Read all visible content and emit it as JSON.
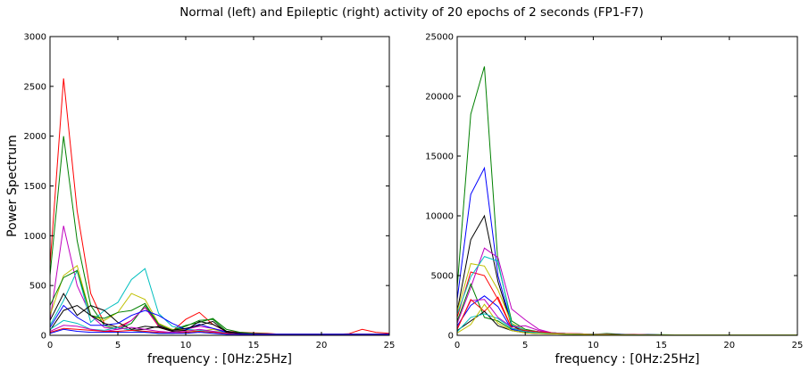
{
  "figure": {
    "title": "Normal (left) and Epileptic (right) activity of 20 epochs of 2 seconds (FP1-F7)"
  },
  "chart_data": [
    {
      "type": "line",
      "title": "",
      "xlabel": "frequency : [0Hz:25Hz]",
      "ylabel": "Power Spectrum",
      "xlim": [
        0,
        25
      ],
      "ylim": [
        0,
        3000
      ],
      "xticks": [
        0,
        5,
        10,
        15,
        20,
        25
      ],
      "yticks": [
        0,
        500,
        1000,
        1500,
        2000,
        2500,
        3000
      ],
      "xtick_labels": [
        "0",
        "5",
        "10",
        "15",
        "20",
        "25"
      ],
      "ytick_labels": [
        "0",
        "500",
        "1000",
        "1500",
        "2000",
        "2500",
        "3000"
      ],
      "grid": false,
      "x": [
        0,
        1,
        2,
        3,
        4,
        5,
        6,
        7,
        8,
        9,
        10,
        11,
        12,
        13,
        14,
        15,
        16,
        17,
        18,
        19,
        20,
        21,
        22,
        23,
        24,
        25
      ],
      "series": [
        {
          "color": "#ff0000",
          "values": [
            700,
            2580,
            1250,
            420,
            120,
            80,
            150,
            280,
            90,
            40,
            160,
            230,
            110,
            40,
            30,
            25,
            20,
            10,
            10,
            10,
            10,
            10,
            15,
            60,
            30,
            20
          ]
        },
        {
          "color": "#008000",
          "values": [
            600,
            2000,
            950,
            300,
            100,
            60,
            120,
            300,
            100,
            50,
            100,
            130,
            170,
            60,
            30,
            20,
            15,
            10,
            10,
            10,
            10,
            10,
            10,
            10,
            10,
            10
          ]
        },
        {
          "color": "#bf00bf",
          "values": [
            150,
            1100,
            500,
            200,
            80,
            60,
            150,
            280,
            100,
            50,
            60,
            90,
            70,
            40,
            20,
            15,
            10,
            10,
            10,
            10,
            10,
            10,
            10,
            10,
            10,
            10
          ]
        },
        {
          "color": "#bfbf00",
          "values": [
            200,
            600,
            700,
            200,
            150,
            230,
            420,
            360,
            120,
            60,
            50,
            40,
            60,
            30,
            20,
            10,
            10,
            10,
            10,
            10,
            10,
            10,
            10,
            10,
            10,
            10
          ]
        },
        {
          "color": "#00bfbf",
          "values": [
            100,
            350,
            650,
            130,
            250,
            330,
            560,
            670,
            220,
            90,
            60,
            50,
            40,
            30,
            20,
            10,
            10,
            10,
            10,
            10,
            10,
            10,
            10,
            10,
            10,
            10
          ]
        },
        {
          "color": "#008000",
          "values": [
            300,
            580,
            650,
            200,
            170,
            230,
            250,
            320,
            110,
            50,
            90,
            150,
            160,
            40,
            20,
            15,
            10,
            10,
            10,
            10,
            10,
            10,
            10,
            10,
            10,
            10
          ]
        },
        {
          "color": "#000000",
          "values": [
            150,
            420,
            200,
            300,
            250,
            130,
            60,
            90,
            80,
            40,
            50,
            140,
            110,
            40,
            20,
            10,
            10,
            10,
            10,
            10,
            10,
            10,
            10,
            10,
            10,
            10
          ]
        },
        {
          "color": "#0000ff",
          "values": [
            80,
            300,
            180,
            100,
            100,
            120,
            200,
            250,
            200,
            120,
            60,
            110,
            70,
            30,
            20,
            10,
            10,
            10,
            10,
            10,
            10,
            10,
            10,
            10,
            10,
            10
          ]
        },
        {
          "color": "#000000",
          "values": [
            50,
            250,
            300,
            200,
            120,
            80,
            50,
            60,
            90,
            50,
            70,
            100,
            140,
            30,
            20,
            10,
            10,
            10,
            10,
            10,
            10,
            10,
            10,
            10,
            10,
            10
          ]
        },
        {
          "color": "#00bfbf",
          "values": [
            60,
            150,
            120,
            60,
            50,
            80,
            50,
            30,
            20,
            20,
            30,
            40,
            30,
            20,
            10,
            10,
            10,
            10,
            10,
            10,
            10,
            10,
            10,
            10,
            10,
            10
          ]
        },
        {
          "color": "#bf00bf",
          "values": [
            40,
            100,
            90,
            60,
            40,
            60,
            80,
            60,
            40,
            30,
            40,
            60,
            40,
            20,
            10,
            10,
            10,
            10,
            10,
            10,
            10,
            10,
            10,
            10,
            10,
            10
          ]
        },
        {
          "color": "#ff0000",
          "values": [
            30,
            70,
            60,
            50,
            40,
            40,
            50,
            40,
            30,
            20,
            30,
            40,
            30,
            20,
            10,
            10,
            10,
            10,
            10,
            10,
            10,
            10,
            10,
            10,
            10,
            10
          ]
        },
        {
          "color": "#0000ff",
          "values": [
            20,
            60,
            40,
            30,
            30,
            30,
            30,
            30,
            20,
            20,
            20,
            30,
            20,
            10,
            10,
            10,
            10,
            10,
            10,
            10,
            10,
            10,
            10,
            10,
            10,
            10
          ]
        }
      ]
    },
    {
      "type": "line",
      "title": "",
      "xlabel": "frequency : [0Hz:25Hz]",
      "ylabel": "",
      "xlim": [
        0,
        25
      ],
      "ylim": [
        0,
        25000
      ],
      "xticks": [
        0,
        5,
        10,
        15,
        20,
        25
      ],
      "yticks": [
        0,
        5000,
        10000,
        15000,
        20000,
        25000
      ],
      "xtick_labels": [
        "0",
        "5",
        "10",
        "15",
        "20",
        "25"
      ],
      "ytick_labels": [
        "0",
        "5000",
        "10000",
        "15000",
        "20000",
        "25000"
      ],
      "grid": false,
      "x": [
        0,
        1,
        2,
        3,
        4,
        5,
        6,
        7,
        8,
        9,
        10,
        11,
        12,
        13,
        14,
        15,
        16,
        17,
        18,
        19,
        20,
        21,
        22,
        23,
        24,
        25
      ],
      "series": [
        {
          "color": "#008000",
          "values": [
            4000,
            18500,
            22500,
            6000,
            1200,
            500,
            300,
            200,
            150,
            120,
            100,
            150,
            100,
            80,
            60,
            50,
            40,
            30,
            30,
            30,
            30,
            30,
            30,
            30,
            30,
            30
          ]
        },
        {
          "color": "#0000ff",
          "values": [
            3000,
            11800,
            14000,
            5000,
            900,
            400,
            300,
            200,
            150,
            120,
            100,
            100,
            80,
            60,
            50,
            40,
            30,
            30,
            30,
            30,
            30,
            30,
            30,
            30,
            30,
            30
          ]
        },
        {
          "color": "#000000",
          "values": [
            2000,
            8000,
            10000,
            4500,
            800,
            300,
            200,
            150,
            120,
            100,
            100,
            120,
            80,
            60,
            50,
            40,
            30,
            30,
            30,
            30,
            30,
            30,
            30,
            30,
            30,
            30
          ]
        },
        {
          "color": "#ff0000",
          "values": [
            1500,
            5300,
            5000,
            3000,
            600,
            300,
            200,
            150,
            120,
            100,
            80,
            80,
            60,
            50,
            40,
            30,
            30,
            30,
            30,
            30,
            30,
            30,
            30,
            30,
            30,
            30
          ]
        },
        {
          "color": "#bf00bf",
          "values": [
            1000,
            4000,
            7300,
            6500,
            2200,
            1300,
            500,
            200,
            150,
            120,
            100,
            80,
            60,
            50,
            40,
            30,
            30,
            30,
            30,
            30,
            30,
            30,
            30,
            30,
            30,
            30
          ]
        },
        {
          "color": "#bfbf00",
          "values": [
            2000,
            6000,
            5800,
            3800,
            1000,
            400,
            300,
            200,
            150,
            120,
            100,
            80,
            60,
            50,
            40,
            30,
            30,
            30,
            30,
            30,
            30,
            30,
            30,
            30,
            30,
            30
          ]
        },
        {
          "color": "#00bfbf",
          "values": [
            1800,
            4900,
            6600,
            6200,
            900,
            400,
            300,
            200,
            150,
            120,
            100,
            80,
            60,
            50,
            40,
            30,
            30,
            30,
            30,
            30,
            30,
            30,
            30,
            30,
            30,
            30
          ]
        },
        {
          "color": "#008000",
          "values": [
            1200,
            4300,
            1500,
            1200,
            500,
            300,
            200,
            150,
            120,
            100,
            80,
            60,
            50,
            40,
            30,
            30,
            30,
            30,
            30,
            30,
            30,
            30,
            30,
            30,
            30,
            30
          ]
        },
        {
          "color": "#0000ff",
          "values": [
            800,
            2500,
            3300,
            2400,
            500,
            300,
            200,
            150,
            120,
            100,
            80,
            60,
            50,
            40,
            30,
            30,
            30,
            30,
            30,
            30,
            30,
            30,
            30,
            30,
            30,
            30
          ]
        },
        {
          "color": "#bf00bf",
          "values": [
            600,
            2900,
            3000,
            1500,
            700,
            800,
            400,
            200,
            150,
            120,
            100,
            80,
            60,
            50,
            40,
            30,
            30,
            30,
            30,
            30,
            30,
            30,
            30,
            30,
            30,
            30
          ]
        },
        {
          "color": "#ff0000",
          "values": [
            500,
            3000,
            2000,
            3200,
            600,
            400,
            300,
            200,
            150,
            120,
            100,
            80,
            60,
            50,
            40,
            30,
            30,
            30,
            30,
            30,
            30,
            30,
            30,
            30,
            30,
            30
          ]
        },
        {
          "color": "#000000",
          "values": [
            400,
            1200,
            2000,
            800,
            400,
            200,
            150,
            120,
            100,
            80,
            60,
            50,
            40,
            30,
            30,
            30,
            30,
            30,
            30,
            30,
            30,
            30,
            30,
            30,
            30,
            30
          ]
        },
        {
          "color": "#00bfbf",
          "values": [
            300,
            1500,
            1800,
            1400,
            600,
            300,
            200,
            150,
            120,
            100,
            80,
            60,
            50,
            40,
            30,
            30,
            30,
            30,
            30,
            30,
            30,
            30,
            30,
            30,
            30,
            30
          ]
        },
        {
          "color": "#bfbf00",
          "values": [
            200,
            900,
            2600,
            1000,
            400,
            200,
            150,
            120,
            100,
            80,
            60,
            50,
            40,
            30,
            30,
            30,
            30,
            30,
            30,
            30,
            30,
            30,
            30,
            30,
            30,
            30
          ]
        }
      ]
    }
  ]
}
